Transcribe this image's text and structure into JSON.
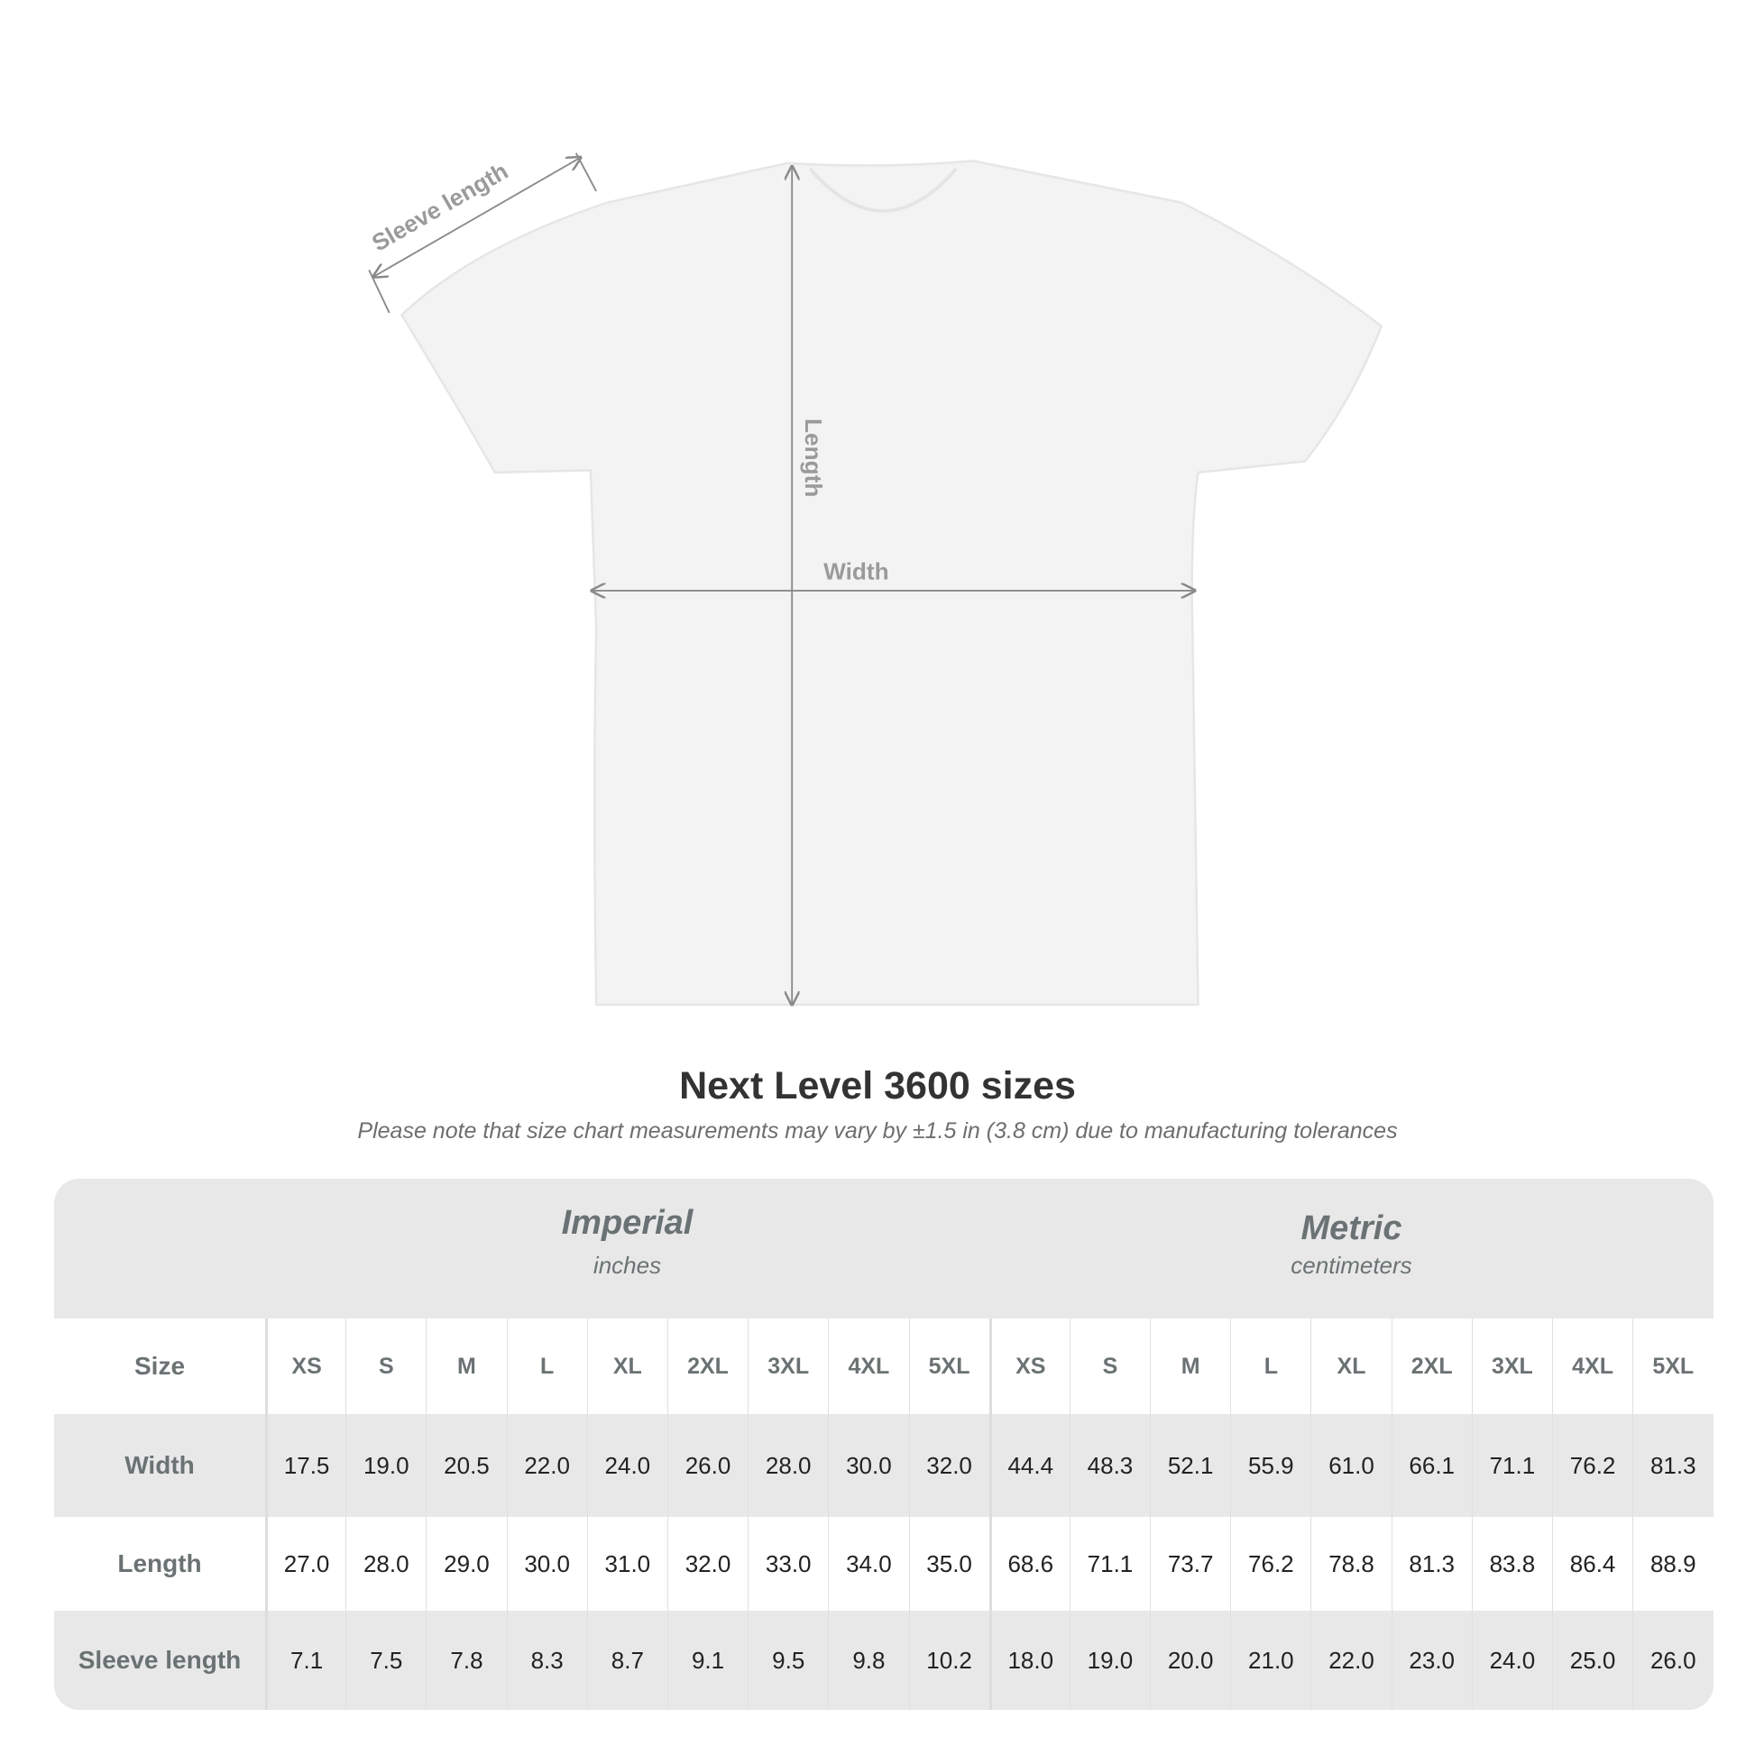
{
  "diagram": {
    "sleeve_label": "Sleeve length",
    "length_label": "Length",
    "width_label": "Width"
  },
  "title": "Next Level 3600 sizes",
  "note": "Please note that size chart measurements may vary by ±1.5 in (3.8 cm) due to manufacturing tolerances",
  "table": {
    "imperial": {
      "label": "Imperial",
      "unit": "inches"
    },
    "metric": {
      "label": "Metric",
      "unit": "centimeters"
    },
    "size_label": "Size",
    "sizes": [
      "XS",
      "S",
      "M",
      "L",
      "XL",
      "2XL",
      "3XL",
      "4XL",
      "5XL"
    ],
    "rows": [
      {
        "label": "Width",
        "imperial": [
          "17.5",
          "19.0",
          "20.5",
          "22.0",
          "24.0",
          "26.0",
          "28.0",
          "30.0",
          "32.0"
        ],
        "metric": [
          "44.4",
          "48.3",
          "52.1",
          "55.9",
          "61.0",
          "66.1",
          "71.1",
          "76.2",
          "81.3"
        ]
      },
      {
        "label": "Length",
        "imperial": [
          "27.0",
          "28.0",
          "29.0",
          "30.0",
          "31.0",
          "32.0",
          "33.0",
          "34.0",
          "35.0"
        ],
        "metric": [
          "68.6",
          "71.1",
          "73.7",
          "76.2",
          "78.8",
          "81.3",
          "83.8",
          "86.4",
          "88.9"
        ]
      },
      {
        "label": "Sleeve length",
        "imperial": [
          "7.1",
          "7.5",
          "7.8",
          "8.3",
          "8.7",
          "9.1",
          "9.5",
          "9.8",
          "10.2"
        ],
        "metric": [
          "18.0",
          "19.0",
          "20.0",
          "21.0",
          "22.0",
          "23.0",
          "24.0",
          "25.0",
          "26.0"
        ]
      }
    ]
  }
}
